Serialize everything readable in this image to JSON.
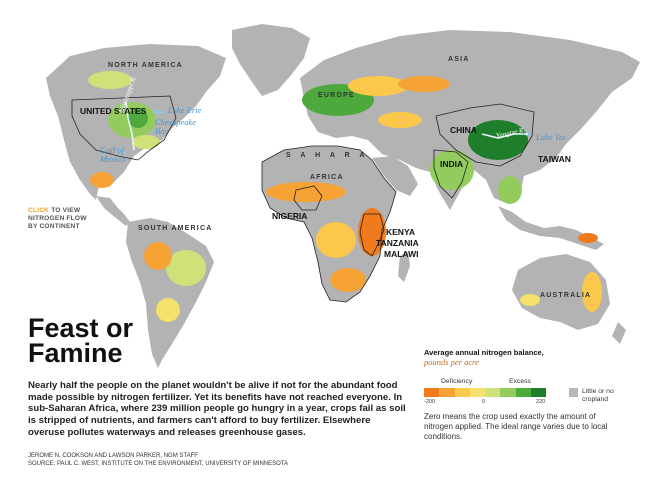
{
  "map": {
    "regions": {
      "north_america": "NORTH AMERICA",
      "south_america": "SOUTH AMERICA",
      "europe": "EUROPE",
      "asia": "ASIA",
      "africa": "AFRICA",
      "australia": "AUSTRALIA",
      "sahara": "S A H A R A"
    },
    "countries": {
      "united_states": "UNITED STATES",
      "china": "CHINA",
      "india": "INDIA",
      "taiwan": "TAIWAN",
      "nigeria": "NIGERIA",
      "kenya": "KENYA",
      "tanzania": "TANZANIA",
      "malawi": "MALAWI"
    },
    "water": {
      "lake_erie": "Lake Erie",
      "chesapeake": "Chesapeake Bay",
      "gulf_of_mexico": "Gulf of Mexico",
      "lake_tai": "Lake Tai"
    },
    "rivers": {
      "mississippi": "Mississippi R.",
      "yangtze": "Yangtze R."
    }
  },
  "click_note": {
    "highlight": "CLICK",
    "rest": "TO VIEW",
    "line2": "NITROGEN FLOW",
    "line3": "BY CONTINENT"
  },
  "title": {
    "line1": "Feast or",
    "line2": "Famine"
  },
  "body": "Nearly half the people on the planet wouldn't be alive if not for the abundant food made possible by nitrogen fertilizer. Yet its benefits have not reached everyone. In sub-Saharan Africa, where 239 million people go hungry in a year, crops fail as soil is stripped of nutrients, and farmers can't afford to buy fertilizer. Elsewhere overuse pollutes waterways and releases greenhouse gases.",
  "credits": {
    "line1": "JEROME N. COOKSON AND LAWSON PARKER, NGM STAFF",
    "line2": "SOURCE: PAUL C. WEST, INSTITUTE ON THE ENVIRONMENT, UNIVERSITY OF MINNESOTA"
  },
  "legend": {
    "title": "Average annual nitrogen balance,",
    "units": "pounds per acre",
    "deficiency": "Deficiency",
    "excess": "Excess",
    "tick_min": "-200",
    "tick_mid": "0",
    "tick_max": "220",
    "scale_colors": [
      "#f07a1c",
      "#f7a234",
      "#fbc84b",
      "#f5e16b",
      "#cfe27a",
      "#93cc5c",
      "#4ea93c",
      "#1f7e2b"
    ],
    "no_cropland": "Little or no cropland",
    "no_cropland_color": "#b7b7b7",
    "note": "Zero means the crop used exactly the amount of nitrogen applied. The ideal range varies due to local conditions."
  }
}
